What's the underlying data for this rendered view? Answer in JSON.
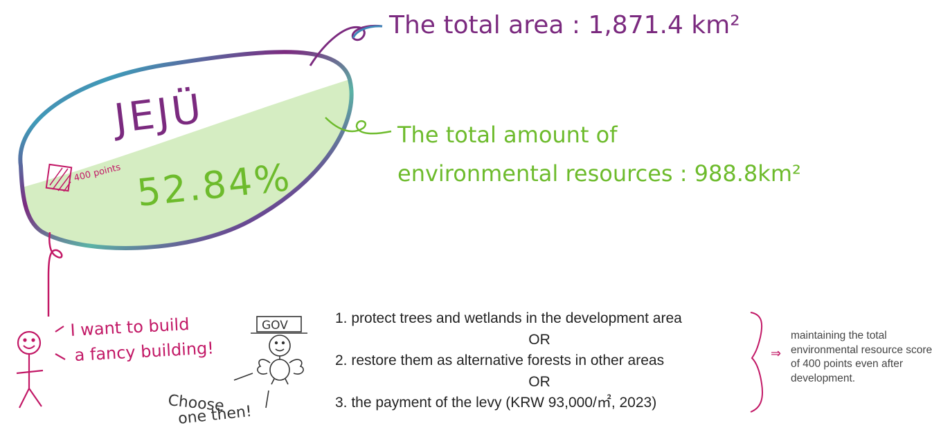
{
  "island": {
    "name": "JEJÜ",
    "percentage": "52.84%",
    "score_label": "400 points"
  },
  "annotations": {
    "total_area": "The total area : 1,871.4 km²",
    "env_line1": "The total amount of",
    "env_line2": "environmental resources : 988.8km²"
  },
  "characters": {
    "person_speech_line1": "I want to build",
    "person_speech_line2": "a fancy building!",
    "gov_sign": "GOV",
    "gov_speech_line1": "Choose",
    "gov_speech_line2": "one then!"
  },
  "options": {
    "option1": "1. protect trees and wetlands in the development area",
    "or1": "OR",
    "option2": "2. restore them as alternative forests in other areas",
    "or2": "OR",
    "option3": "3. the payment of the levy (KRW 93,000/㎡, 2023)"
  },
  "result": {
    "arrow": "⇒",
    "text": "maintaining the total environmental resource score of 400 points even after development."
  },
  "colors": {
    "purple": "#7b2a7f",
    "green": "#6dbb2c",
    "pink": "#c21866",
    "fill_green": "#d5edc2"
  }
}
